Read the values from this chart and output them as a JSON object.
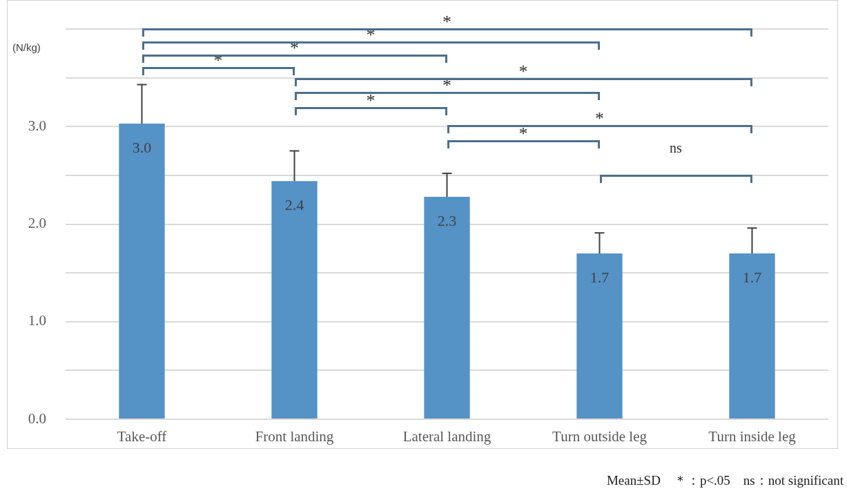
{
  "chart_data": {
    "type": "bar",
    "ylabel": "(N/kg)",
    "categories": [
      "Take-off",
      "Front landing",
      "Lateral landing",
      "Turn outside leg",
      "Turn inside leg"
    ],
    "values": [
      3.03,
      2.44,
      2.28,
      1.7,
      1.7
    ],
    "value_labels": [
      "3.0",
      "2.4",
      "2.3",
      "1.7",
      "1.7"
    ],
    "errors": [
      0.4,
      0.31,
      0.24,
      0.21,
      0.26
    ],
    "color": "#5592c6",
    "ylim": [
      0,
      4
    ],
    "yticks": [
      {
        "value": 0,
        "label": "0.0"
      },
      {
        "value": 0.5,
        "label": null
      },
      {
        "value": 1,
        "label": "1.0"
      },
      {
        "value": 1.5,
        "label": null
      },
      {
        "value": 2,
        "label": "2.0"
      },
      {
        "value": 2.5,
        "label": null
      },
      {
        "value": 3,
        "label": "3.0"
      },
      {
        "value": 3.5,
        "label": null
      },
      {
        "value": 4,
        "label": null
      }
    ],
    "grid": "y",
    "legend": false,
    "annotations": [
      "*",
      "*",
      "*",
      "*",
      "*",
      "*",
      "*",
      "*",
      "*",
      "ns",
      "Mean±SD　＊：p<.05　ns：not significant"
    ]
  }
}
